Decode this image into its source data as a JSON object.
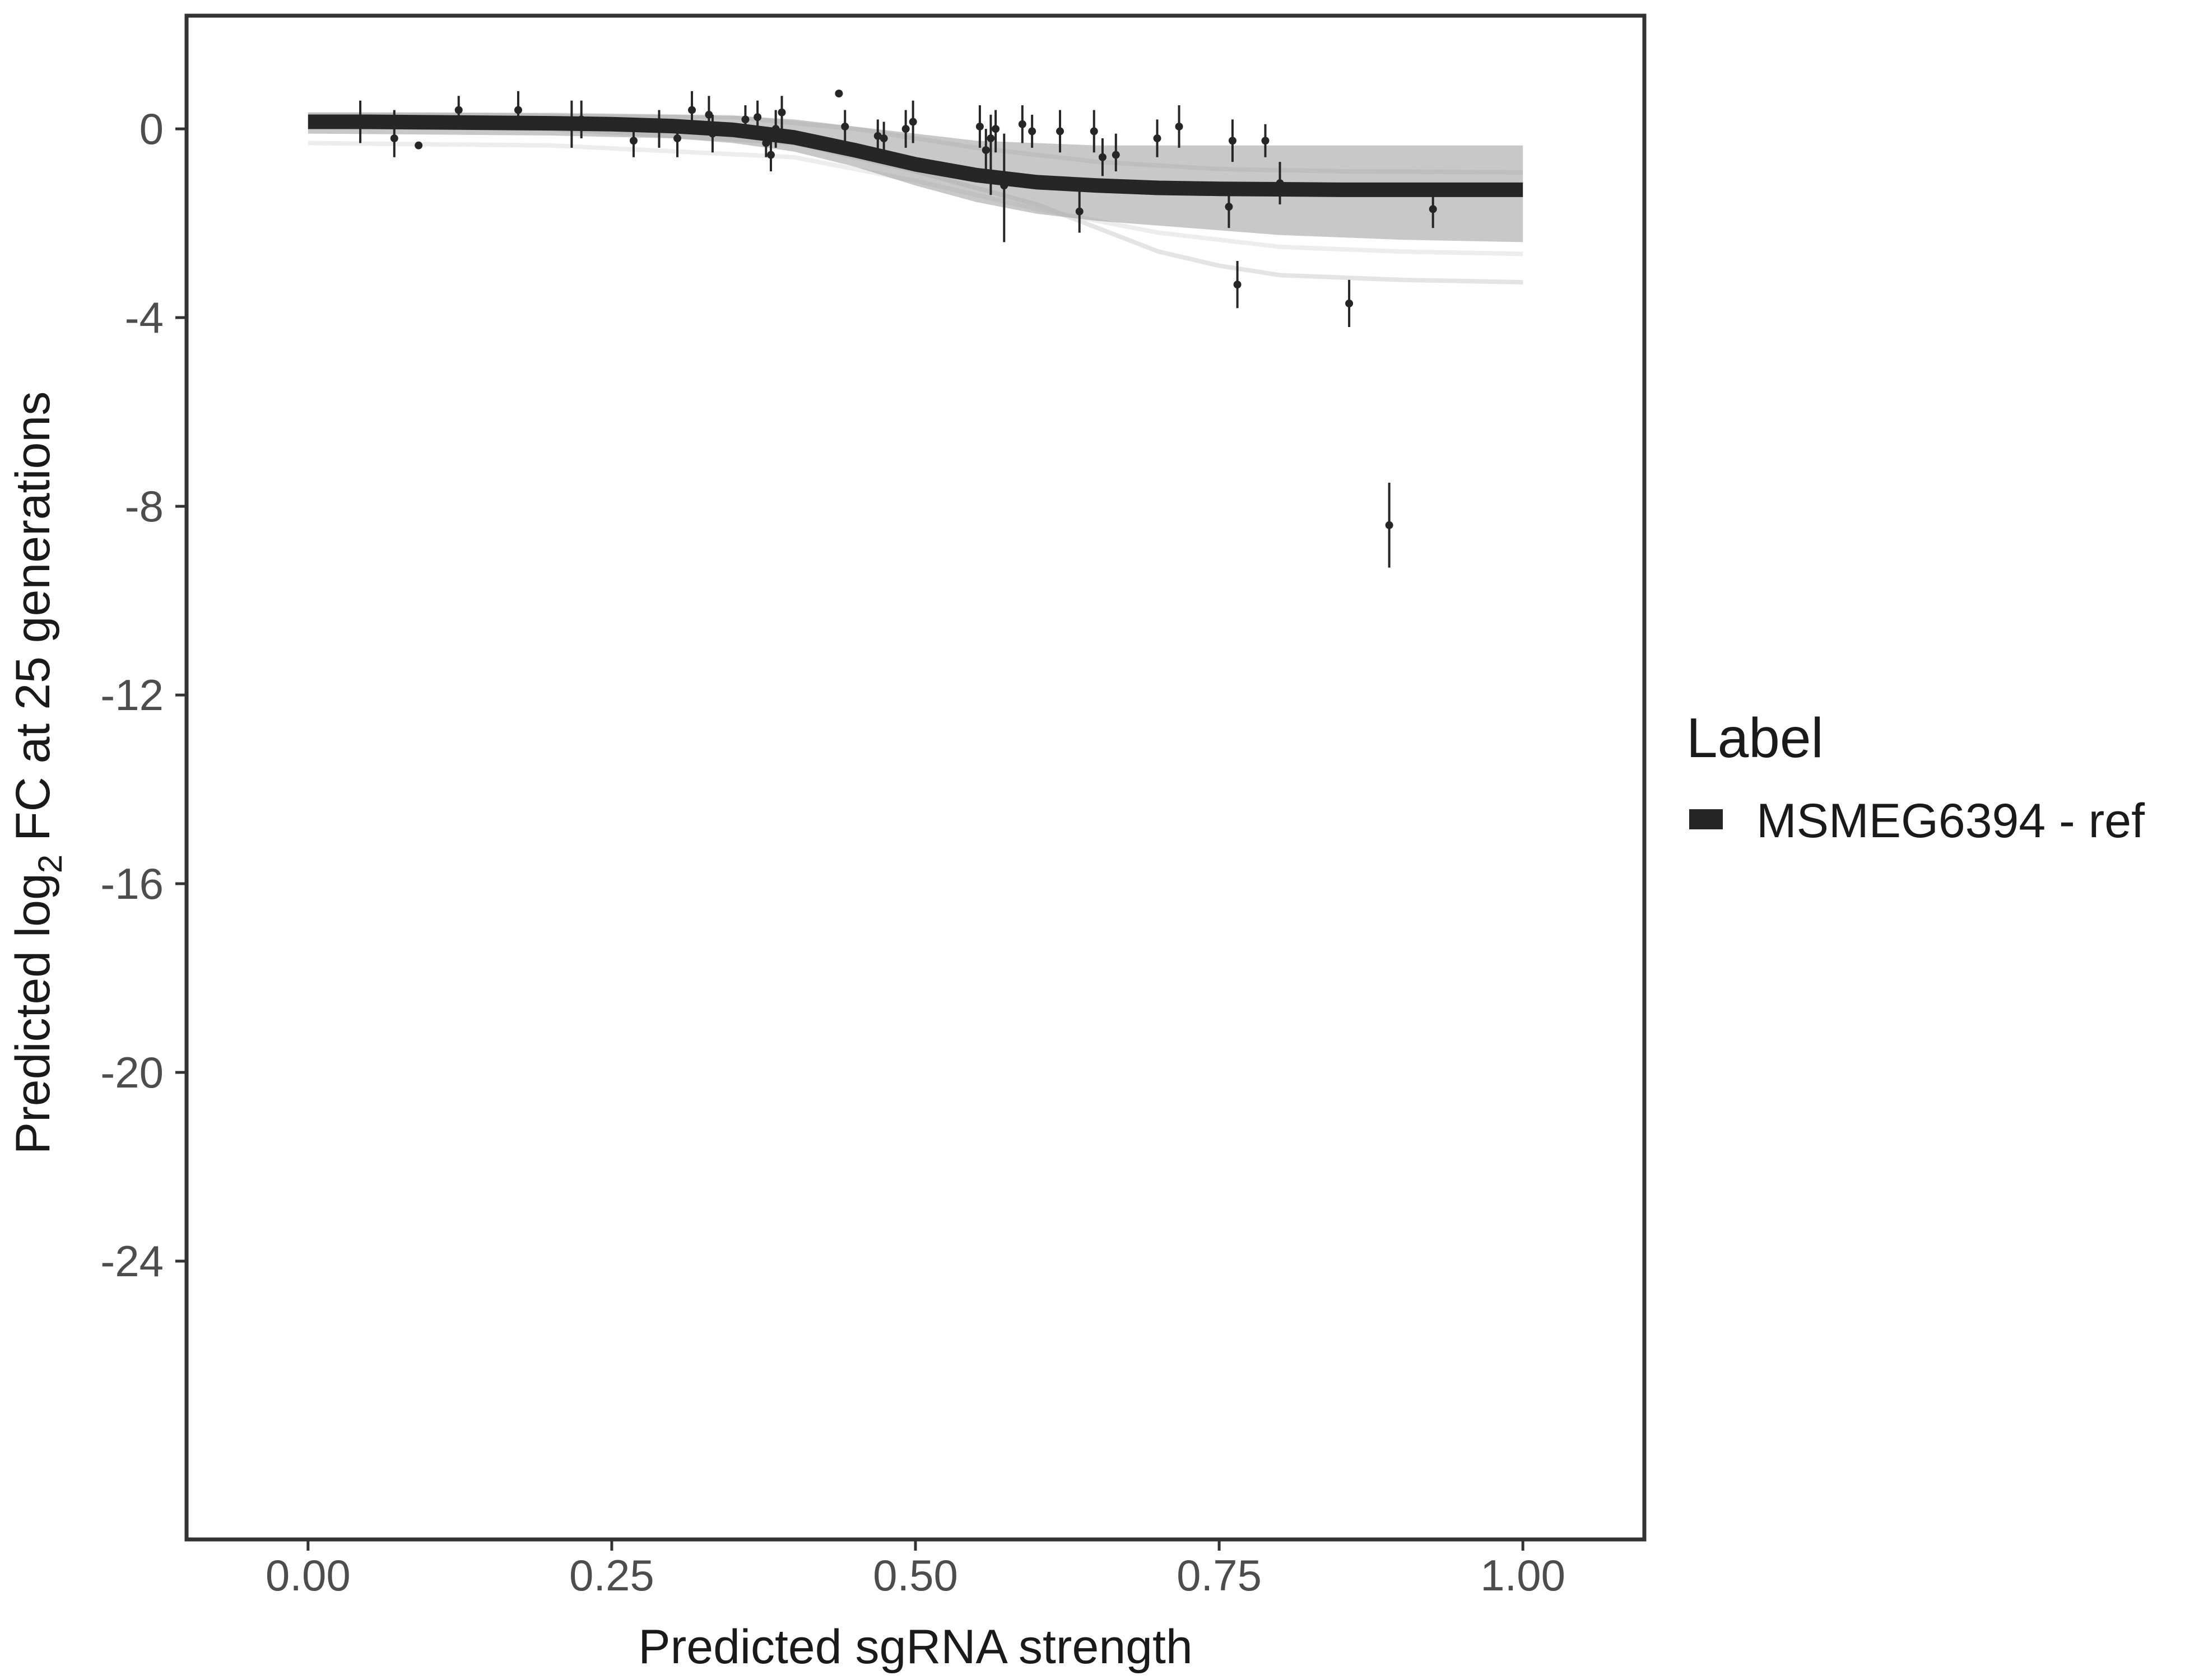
{
  "chart_data": {
    "type": "scatter",
    "title": "",
    "xlabel": "Predicted sgRNA strength",
    "ylabel": {
      "before": "Predicted  log",
      "subscript": "2",
      "after": " FC at 25 generations"
    },
    "xlim": [
      -0.1,
      1.1
    ],
    "ylim": [
      -29.9,
      2.4
    ],
    "x_ticks": [
      "0.00",
      "0.25",
      "0.50",
      "0.75",
      "1.00"
    ],
    "y_ticks": [
      "0",
      "-4",
      "-8",
      "-12",
      "-16",
      "-20",
      "-24"
    ],
    "grid": false,
    "legend": {
      "title": "Label",
      "position": "right",
      "entries": [
        {
          "label": "MSMEG6394 - ref",
          "color": "#262626"
        }
      ]
    },
    "fit_curve": {
      "name": "MSMEG6394 - ref",
      "color": "#262626",
      "x": [
        0.0,
        0.05,
        0.1,
        0.15,
        0.2,
        0.25,
        0.3,
        0.35,
        0.4,
        0.45,
        0.5,
        0.55,
        0.6,
        0.65,
        0.7,
        0.75,
        0.8,
        0.85,
        0.9,
        0.95,
        1.0
      ],
      "y": [
        0.15,
        0.15,
        0.14,
        0.13,
        0.12,
        0.1,
        0.06,
        -0.02,
        -0.18,
        -0.45,
        -0.75,
        -0.98,
        -1.13,
        -1.2,
        -1.25,
        -1.27,
        -1.28,
        -1.29,
        -1.29,
        -1.29,
        -1.29
      ]
    },
    "posterior_band": {
      "color": "#9a9a9a",
      "x": [
        0.0,
        0.1,
        0.2,
        0.3,
        0.35,
        0.4,
        0.45,
        0.5,
        0.55,
        0.6,
        0.65,
        0.7,
        0.75,
        0.8,
        0.9,
        1.0
      ],
      "upper": [
        0.35,
        0.35,
        0.33,
        0.3,
        0.28,
        0.2,
        0.05,
        -0.1,
        -0.25,
        -0.3,
        -0.35,
        -0.35,
        -0.35,
        -0.35,
        -0.35,
        -0.35
      ],
      "lower": [
        -0.1,
        -0.12,
        -0.14,
        -0.2,
        -0.3,
        -0.48,
        -0.8,
        -1.2,
        -1.55,
        -1.8,
        -1.95,
        -2.05,
        -2.15,
        -2.25,
        -2.35,
        -2.4
      ]
    },
    "faint_draws": [
      {
        "color": "#d9d9d9",
        "x": [
          0.0,
          0.2,
          0.4,
          0.5,
          0.6,
          0.65,
          0.7,
          0.75,
          0.8,
          0.9,
          1.0
        ],
        "y": [
          0.05,
          0.0,
          -0.3,
          -0.9,
          -1.6,
          -2.1,
          -2.6,
          -2.9,
          -3.1,
          -3.2,
          -3.25
        ]
      },
      {
        "color": "#e6e6e6",
        "x": [
          0.0,
          0.2,
          0.4,
          0.5,
          0.6,
          0.7,
          0.8,
          0.9,
          1.0
        ],
        "y": [
          -0.3,
          -0.35,
          -0.6,
          -1.1,
          -1.7,
          -2.2,
          -2.5,
          -2.6,
          -2.65
        ]
      },
      {
        "color": "#e0e0e0",
        "x": [
          0.0,
          0.2,
          0.35,
          0.45,
          0.55,
          0.65,
          0.75,
          0.85,
          1.0
        ],
        "y": [
          0.3,
          0.3,
          0.25,
          0.0,
          -0.4,
          -0.7,
          -0.85,
          -0.9,
          -0.92
        ]
      }
    ],
    "points": [
      {
        "x": 0.043,
        "y": 0.1,
        "lo": -0.3,
        "hi": 0.6
      },
      {
        "x": 0.071,
        "y": -0.2,
        "lo": -0.6,
        "hi": 0.4
      },
      {
        "x": 0.091,
        "y": -0.35,
        "lo": -0.4,
        "hi": -0.3
      },
      {
        "x": 0.124,
        "y": 0.4,
        "lo": 0.1,
        "hi": 0.7
      },
      {
        "x": 0.173,
        "y": 0.4,
        "lo": 0.05,
        "hi": 0.8
      },
      {
        "x": 0.217,
        "y": 0.05,
        "lo": -0.4,
        "hi": 0.6
      },
      {
        "x": 0.225,
        "y": 0.2,
        "lo": -0.2,
        "hi": 0.6
      },
      {
        "x": 0.268,
        "y": -0.25,
        "lo": -0.6,
        "hi": 0.1
      },
      {
        "x": 0.289,
        "y": 0.0,
        "lo": -0.4,
        "hi": 0.4
      },
      {
        "x": 0.304,
        "y": -0.2,
        "lo": -0.6,
        "hi": 0.2
      },
      {
        "x": 0.316,
        "y": 0.4,
        "lo": 0.0,
        "hi": 0.8
      },
      {
        "x": 0.33,
        "y": 0.3,
        "lo": -0.1,
        "hi": 0.7
      },
      {
        "x": 0.333,
        "y": -0.1,
        "lo": -0.5,
        "hi": 0.3
      },
      {
        "x": 0.36,
        "y": 0.2,
        "lo": -0.1,
        "hi": 0.5
      },
      {
        "x": 0.37,
        "y": 0.25,
        "lo": -0.1,
        "hi": 0.6
      },
      {
        "x": 0.377,
        "y": -0.3,
        "lo": -0.6,
        "hi": 0.0
      },
      {
        "x": 0.381,
        "y": -0.55,
        "lo": -0.9,
        "hi": -0.2
      },
      {
        "x": 0.385,
        "y": 0.0,
        "lo": -0.4,
        "hi": 0.4
      },
      {
        "x": 0.39,
        "y": 0.35,
        "lo": 0.0,
        "hi": 0.7
      },
      {
        "x": 0.437,
        "y": 0.75,
        "lo": 0.7,
        "hi": 0.8
      },
      {
        "x": 0.442,
        "y": 0.05,
        "lo": -0.3,
        "hi": 0.4
      },
      {
        "x": 0.469,
        "y": -0.15,
        "lo": -0.5,
        "hi": 0.2
      },
      {
        "x": 0.474,
        "y": -0.2,
        "lo": -0.55,
        "hi": 0.15
      },
      {
        "x": 0.492,
        "y": 0.0,
        "lo": -0.4,
        "hi": 0.4
      },
      {
        "x": 0.498,
        "y": 0.15,
        "lo": -0.3,
        "hi": 0.6
      },
      {
        "x": 0.553,
        "y": 0.05,
        "lo": -0.4,
        "hi": 0.5
      },
      {
        "x": 0.558,
        "y": -0.45,
        "lo": -0.9,
        "hi": 0.0
      },
      {
        "x": 0.562,
        "y": -0.2,
        "lo": -1.4,
        "hi": 0.3
      },
      {
        "x": 0.566,
        "y": 0.0,
        "lo": -0.5,
        "hi": 0.4
      },
      {
        "x": 0.573,
        "y": -1.2,
        "lo": -2.4,
        "hi": -0.1
      },
      {
        "x": 0.588,
        "y": 0.1,
        "lo": -0.3,
        "hi": 0.5
      },
      {
        "x": 0.596,
        "y": -0.05,
        "lo": -0.4,
        "hi": 0.3
      },
      {
        "x": 0.619,
        "y": -0.05,
        "lo": -0.5,
        "hi": 0.4
      },
      {
        "x": 0.635,
        "y": -1.75,
        "lo": -2.2,
        "hi": -1.2
      },
      {
        "x": 0.647,
        "y": -0.05,
        "lo": -0.5,
        "hi": 0.4
      },
      {
        "x": 0.654,
        "y": -0.6,
        "lo": -1.0,
        "hi": -0.2
      },
      {
        "x": 0.665,
        "y": -0.55,
        "lo": -0.9,
        "hi": -0.1
      },
      {
        "x": 0.699,
        "y": -0.2,
        "lo": -0.6,
        "hi": 0.2
      },
      {
        "x": 0.717,
        "y": 0.05,
        "lo": -0.4,
        "hi": 0.5
      },
      {
        "x": 0.758,
        "y": -1.65,
        "lo": -2.1,
        "hi": -1.2
      },
      {
        "x": 0.761,
        "y": -0.25,
        "lo": -0.7,
        "hi": 0.2
      },
      {
        "x": 0.765,
        "y": -3.3,
        "lo": -3.8,
        "hi": -2.8
      },
      {
        "x": 0.788,
        "y": -0.25,
        "lo": -0.6,
        "hi": 0.1
      },
      {
        "x": 0.8,
        "y": -1.15,
        "lo": -1.6,
        "hi": -0.7
      },
      {
        "x": 0.857,
        "y": -3.7,
        "lo": -4.2,
        "hi": -3.2
      },
      {
        "x": 0.89,
        "y": -8.4,
        "lo": -9.3,
        "hi": -7.5
      },
      {
        "x": 0.926,
        "y": -1.7,
        "lo": -2.1,
        "hi": -1.3
      }
    ]
  }
}
